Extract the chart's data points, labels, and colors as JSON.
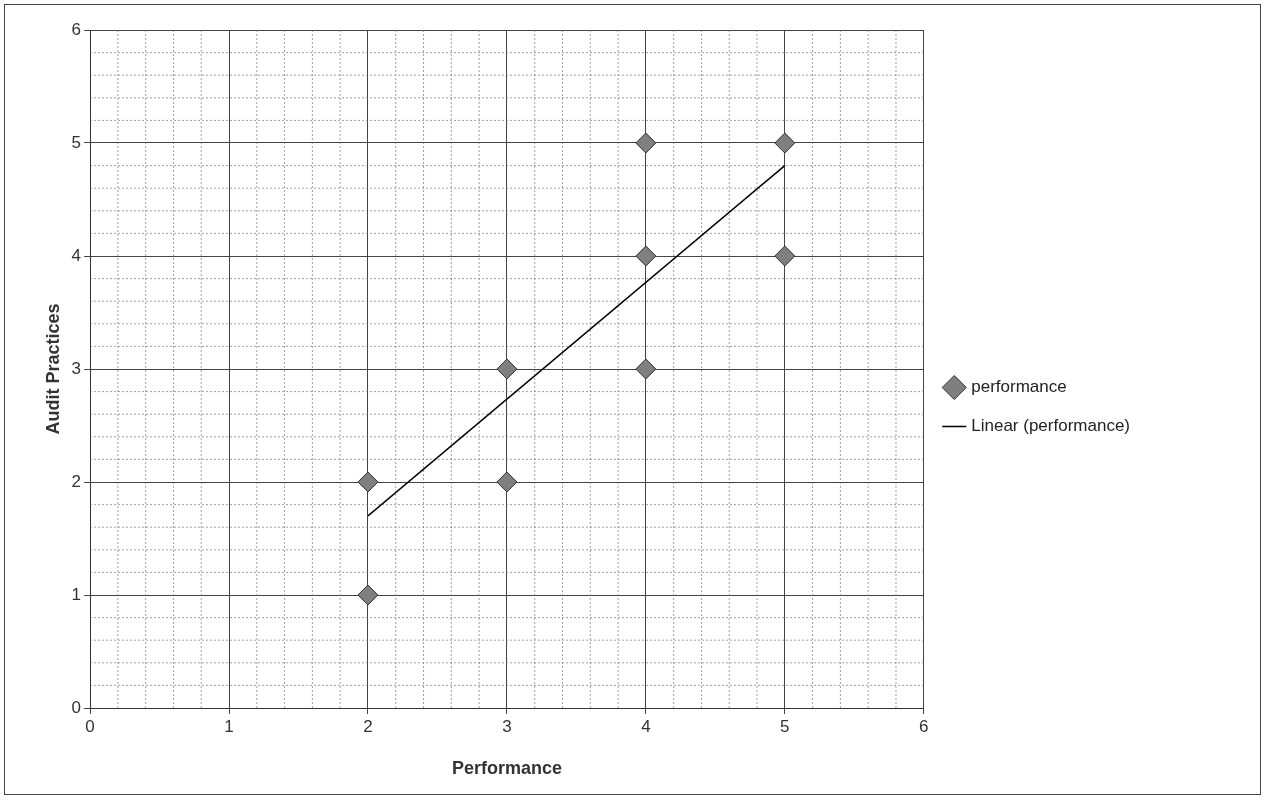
{
  "chart_data": {
    "type": "scatter",
    "xlabel": "Performance",
    "ylabel": "Audit Practices",
    "xlim": [
      0,
      6
    ],
    "xticks": [
      0,
      1,
      2,
      3,
      4,
      5,
      6
    ],
    "ylim": [
      0,
      6
    ],
    "yticks": [
      0,
      1,
      2,
      3,
      4,
      5,
      6
    ],
    "grid": true,
    "legend": "right",
    "series": [
      {
        "name": "performance",
        "marker": "diamond",
        "color": "#7f7f7f",
        "x": [
          2,
          2,
          3,
          3,
          4,
          4,
          4,
          5,
          5
        ],
        "values": [
          1,
          2,
          2,
          3,
          3,
          4,
          5,
          4,
          5
        ]
      },
      {
        "name": "Linear (performance)",
        "type": "line",
        "color": "#000000",
        "line_style": "solid",
        "x": [
          2,
          5
        ],
        "values": [
          1.7,
          4.8
        ]
      }
    ]
  }
}
